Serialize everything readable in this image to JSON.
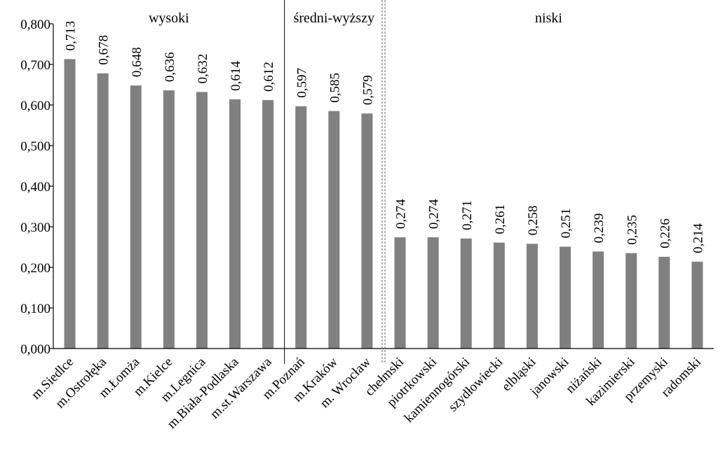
{
  "chart_data": {
    "type": "bar",
    "categories": [
      "m.Siedlce",
      "m.Ostrołęka",
      "m.Łomża",
      "m.Kielce",
      "m.Legnica",
      "m.Biała-Podlaska",
      "m.st.Warszawa",
      "m.Poznań",
      "m.Kraków",
      "m. Wrocław",
      "chełmski",
      "piotrkowski",
      "kamiennogórski",
      "szydłowiecki",
      "elbląski",
      "janowski",
      "niżański",
      "kazimierski",
      "przemyski",
      "radomski"
    ],
    "values": [
      0.713,
      0.678,
      0.648,
      0.636,
      0.632,
      0.614,
      0.612,
      0.597,
      0.585,
      0.579,
      0.274,
      0.274,
      0.271,
      0.261,
      0.258,
      0.251,
      0.239,
      0.235,
      0.226,
      0.214
    ],
    "value_labels": [
      "0,713",
      "0,678",
      "0,648",
      "0,636",
      "0,632",
      "0,614",
      "0,612",
      "0,597",
      "0,585",
      "0,579",
      "0,274",
      "0,274",
      "0,271",
      "0,261",
      "0,258",
      "0,251",
      "0,239",
      "0,235",
      "0,226",
      "0,214"
    ],
    "ylim": [
      0,
      0.8
    ],
    "yticks": [
      0,
      0.1,
      0.2,
      0.3,
      0.4,
      0.5,
      0.6,
      0.7,
      0.8
    ],
    "ytick_labels": [
      "0,000",
      "0,100",
      "0,200",
      "0,300",
      "0,400",
      "0,500",
      "0,600",
      "0,700",
      "0,800"
    ],
    "groups": [
      {
        "label": "wysoki",
        "count": 7
      },
      {
        "label": "średni-wyższy",
        "count": 3
      },
      {
        "label": "niski",
        "count": 10
      }
    ],
    "bar_color": "#808080",
    "grid": false,
    "title": "",
    "xlabel": "",
    "ylabel": ""
  }
}
